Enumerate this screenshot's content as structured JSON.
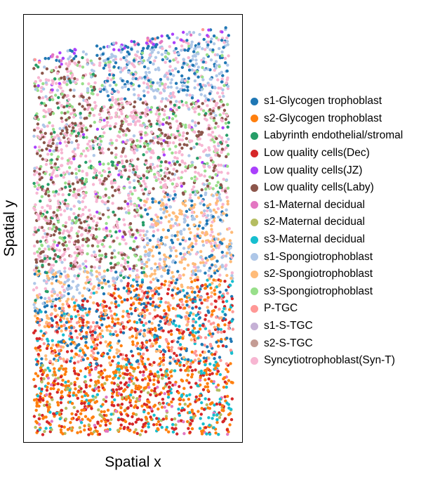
{
  "chart_data": {
    "type": "scatter",
    "xlabel": "Spatial x",
    "ylabel": "Spatial y",
    "title": "",
    "axis_ticks": "none",
    "legend_position": "right",
    "series": [
      {
        "name": "s1-Glycogen trophoblast",
        "color": "#1f77b4"
      },
      {
        "name": "s2-Glycogen trophoblast",
        "color": "#ff7f0e"
      },
      {
        "name": "Labyrinth endothelial/stromal",
        "color": "#279e68"
      },
      {
        "name": "Low quality cells(Dec)",
        "color": "#d62728"
      },
      {
        "name": "Low quality cells(JZ)",
        "color": "#aa40fc"
      },
      {
        "name": "Low quality cells(Laby)",
        "color": "#8c564b"
      },
      {
        "name": "s1-Maternal decidual",
        "color": "#e377c2"
      },
      {
        "name": "s2-Maternal decidual",
        "color": "#b5bd61"
      },
      {
        "name": "s3-Maternal decidual",
        "color": "#17becf"
      },
      {
        "name": "s1-Spongiotrophoblast",
        "color": "#aec7e8"
      },
      {
        "name": "s2-Spongiotrophoblast",
        "color": "#ffbb78"
      },
      {
        "name": "s3-Spongiotrophoblast",
        "color": "#98df8a"
      },
      {
        "name": "P-TGC",
        "color": "#ff9896"
      },
      {
        "name": "s1-S-TGC",
        "color": "#c5b0d5"
      },
      {
        "name": "s2-S-TGC",
        "color": "#c49c94"
      },
      {
        "name": "Syncytiotrophoblast(Syn-T)",
        "color": "#f7b6d2"
      }
    ]
  }
}
